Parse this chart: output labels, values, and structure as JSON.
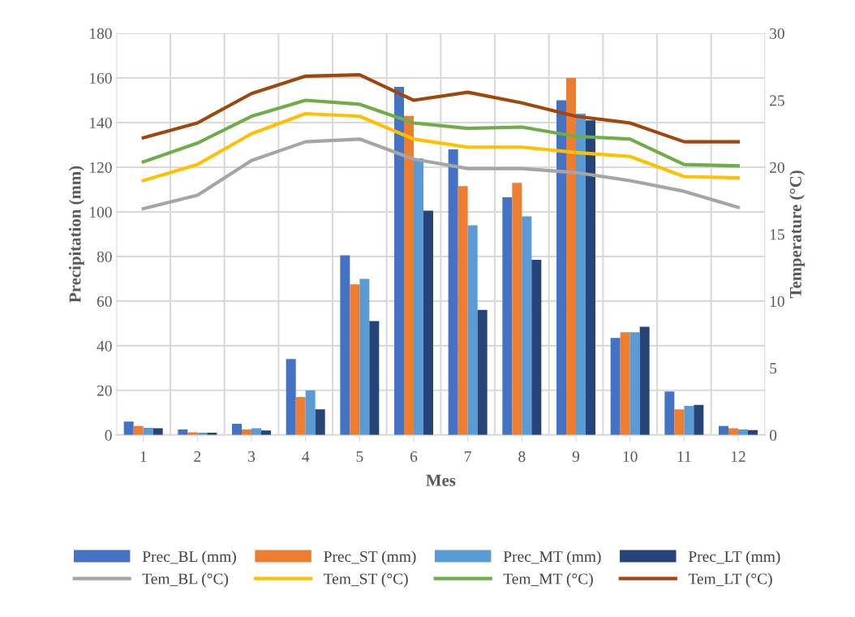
{
  "chart_data": {
    "type": "bar",
    "xlabel": "Mes",
    "ylabel": "Precipitation (mm)",
    "y2label": "Temperature (°C)",
    "categories": [
      "1",
      "2",
      "3",
      "4",
      "5",
      "6",
      "7",
      "8",
      "9",
      "10",
      "11",
      "12"
    ],
    "series": [
      {
        "name": "Prec_BL (mm)",
        "color": "#4472c4",
        "values": [
          6,
          2.5,
          5,
          34,
          80.5,
          156,
          128,
          106.5,
          150,
          43.5,
          19.5,
          4
        ]
      },
      {
        "name": "Prec_ST (mm)",
        "color": "#ed7d31",
        "values": [
          4,
          1.2,
          2.5,
          17,
          67.5,
          143,
          111.5,
          113,
          160,
          46,
          11.5,
          3
        ]
      },
      {
        "name": "Prec_MT (mm)",
        "color": "#5b9bd5",
        "values": [
          3.2,
          1,
          3,
          20,
          70,
          124,
          94,
          98,
          144,
          46,
          13,
          2.5
        ]
      },
      {
        "name": "Prec_LT (mm)",
        "color": "#264478",
        "values": [
          3,
          1,
          2,
          11.5,
          51,
          100.5,
          56,
          78.5,
          141,
          48.5,
          13.5,
          2.2
        ]
      },
      {
        "name": "Tem_BL (°C)",
        "type": "line",
        "axis": "y2",
        "color": "#a5a5a5",
        "values": [
          16.9,
          17.9,
          20.5,
          21.9,
          22.1,
          20.6,
          19.9,
          19.9,
          19.6,
          19.0,
          18.2,
          17.0
        ]
      },
      {
        "name": "Tem_ST (°C)",
        "type": "line",
        "axis": "y2",
        "color": "#ffc000",
        "values": [
          19.0,
          20.2,
          22.5,
          24.0,
          23.8,
          22.1,
          21.5,
          21.5,
          21.1,
          20.8,
          19.3,
          19.2
        ]
      },
      {
        "name": "Tem_MT (°C)",
        "type": "line",
        "axis": "y2",
        "color": "#70ad47",
        "values": [
          20.4,
          21.8,
          23.8,
          25.0,
          24.7,
          23.3,
          22.9,
          23.0,
          22.3,
          22.1,
          20.2,
          20.1
        ]
      },
      {
        "name": "Tem_LT (°C)",
        "type": "line",
        "axis": "y2",
        "color": "#9e480e",
        "values": [
          22.2,
          23.3,
          25.5,
          26.8,
          26.9,
          25.0,
          25.6,
          24.8,
          23.8,
          23.3,
          21.9,
          21.9
        ]
      }
    ],
    "ylim": [
      0,
      180
    ],
    "yticks": [
      0,
      20,
      40,
      60,
      80,
      100,
      120,
      140,
      160,
      180
    ],
    "y2lim": [
      0,
      30
    ],
    "y2ticks": [
      0,
      5,
      10,
      15,
      20,
      25,
      30
    ],
    "grid": true,
    "legend": "bottom"
  }
}
